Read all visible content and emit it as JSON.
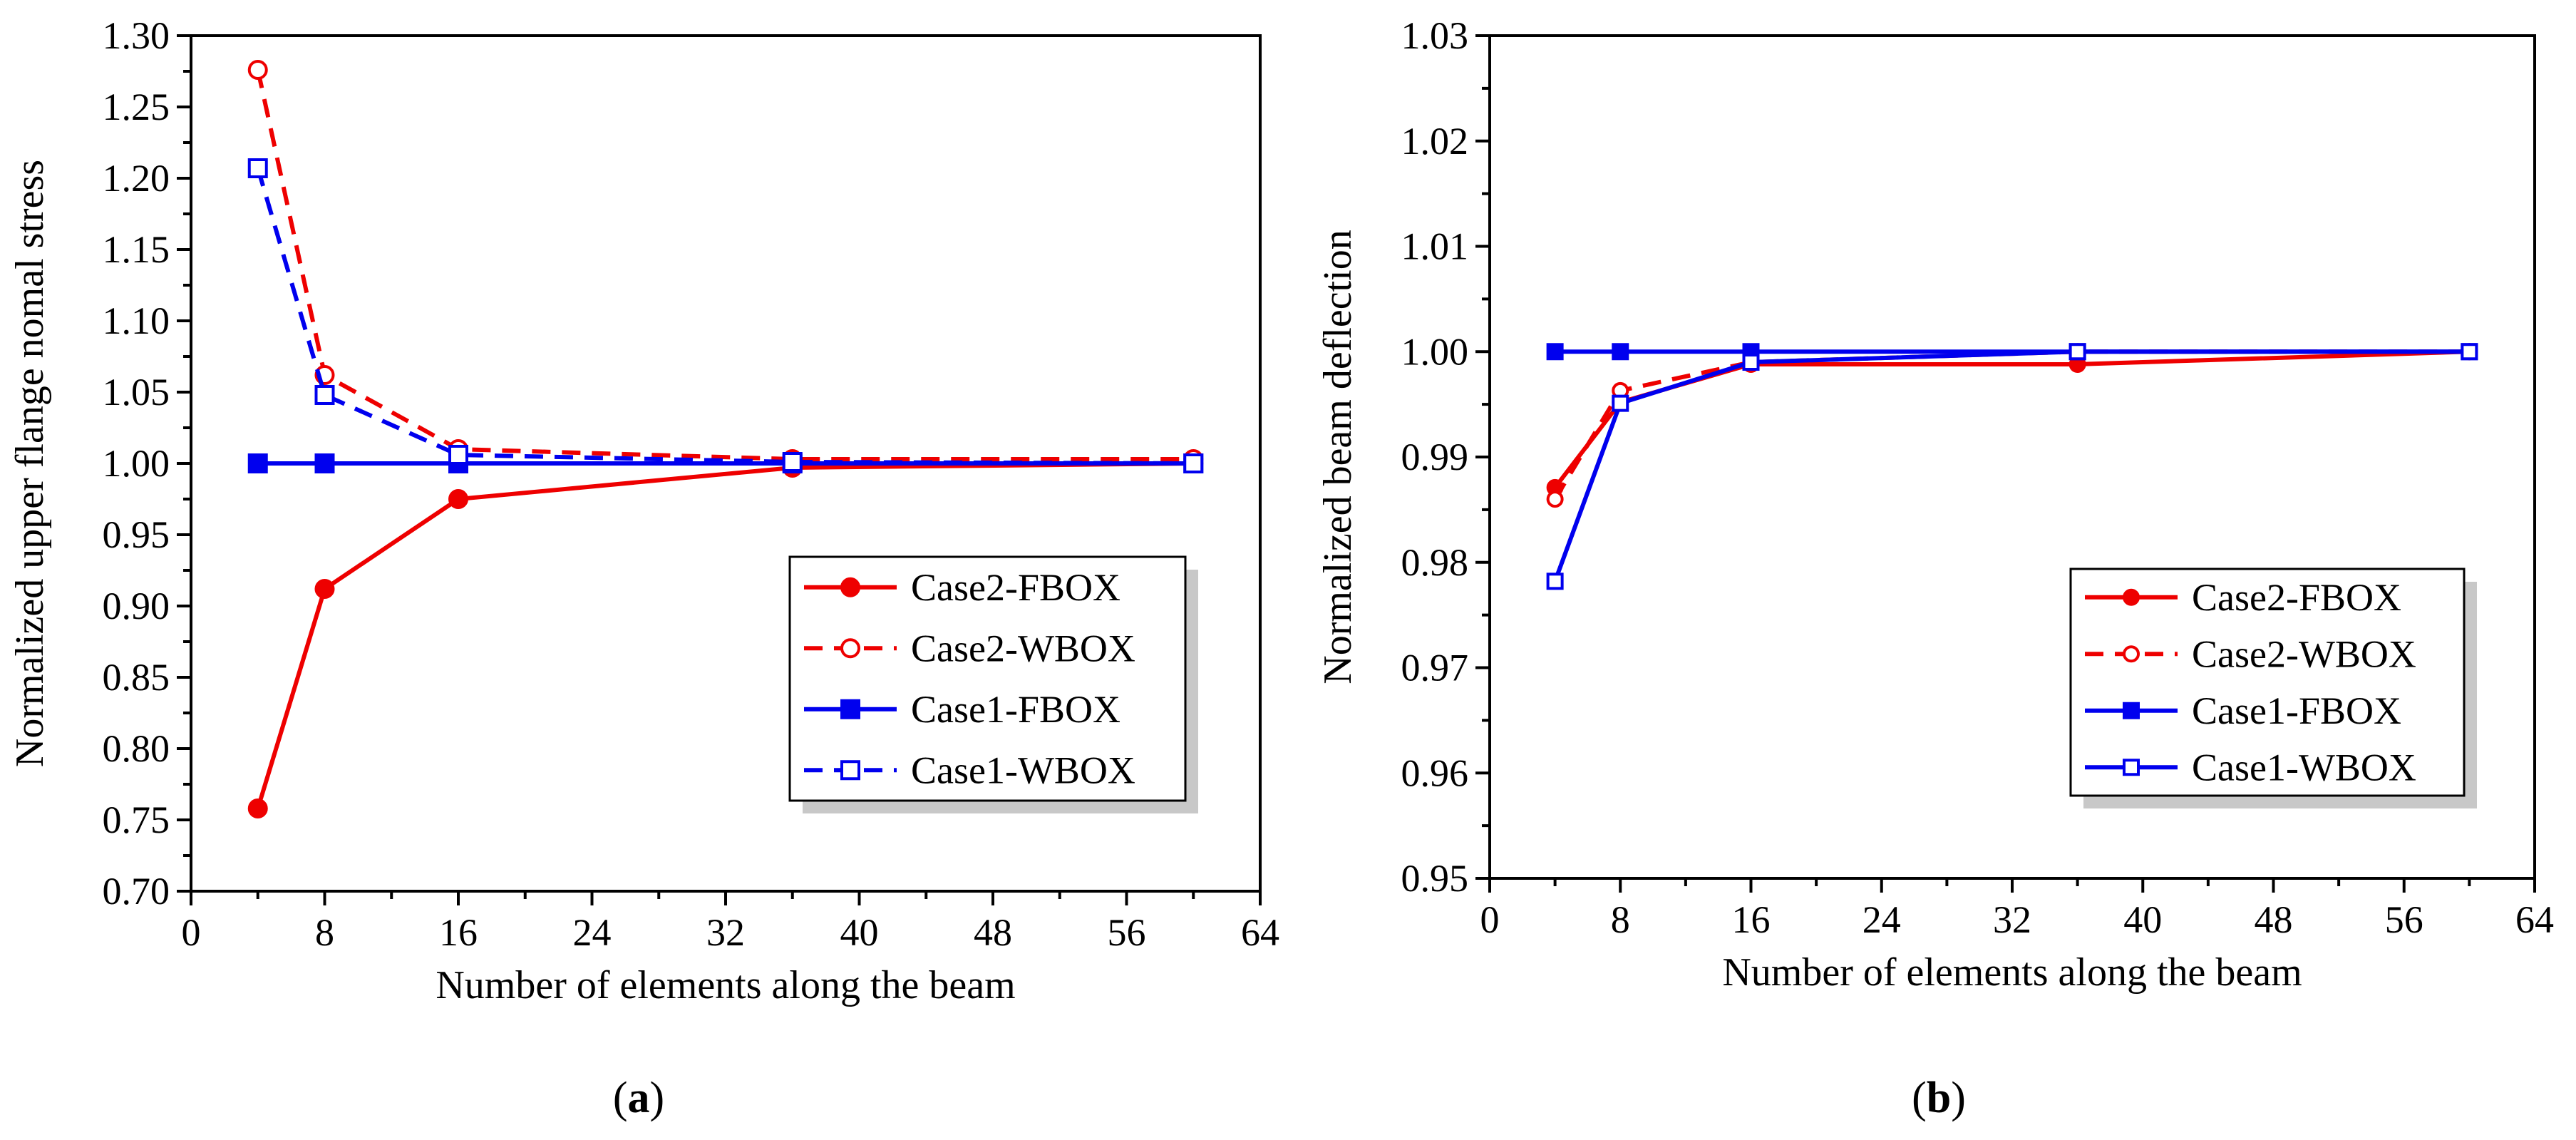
{
  "chart_data": [
    {
      "type": "line",
      "panel": "a",
      "xlabel": "Number of  elements along the beam",
      "ylabel": "Normalized upper flange nomal stress",
      "xlim": [
        0,
        64
      ],
      "ylim": [
        0.7,
        1.3
      ],
      "xticks": [
        "0",
        "8",
        "16",
        "24",
        "32",
        "40",
        "48",
        "56",
        "64"
      ],
      "yticks": [
        "0.70",
        "0.75",
        "0.80",
        "0.85",
        "0.90",
        "0.95",
        "1.00",
        "1.05",
        "1.10",
        "1.15",
        "1.20",
        "1.25",
        "1.30"
      ],
      "legend_position": "lower-right",
      "x": [
        4,
        8,
        16,
        36,
        60
      ],
      "series": [
        {
          "name": "Case2-FBOX",
          "color": "#ee0000",
          "dash": "solid",
          "marker": "circle-filled",
          "values": [
            0.758,
            0.912,
            0.975,
            0.997,
            1.0
          ]
        },
        {
          "name": "Case2-WBOX",
          "color": "#ee0000",
          "dash": "dashed",
          "marker": "circle-open",
          "values": [
            1.276,
            1.062,
            1.01,
            1.003,
            1.003
          ]
        },
        {
          "name": "Case1-FBOX",
          "color": "#0000ee",
          "dash": "solid",
          "marker": "square-filled",
          "values": [
            1.0,
            1.0,
            1.0,
            1.0,
            1.0
          ]
        },
        {
          "name": "Case1-WBOX",
          "color": "#0000ee",
          "dash": "dashed",
          "marker": "square-open",
          "values": [
            1.207,
            1.048,
            1.006,
            1.001,
            1.0
          ]
        }
      ]
    },
    {
      "type": "line",
      "panel": "b",
      "xlabel": "Number of  elements along the beam",
      "ylabel": "Normalized beam deflection",
      "xlim": [
        0,
        64
      ],
      "ylim": [
        0.95,
        1.03
      ],
      "xticks": [
        "0",
        "8",
        "16",
        "24",
        "32",
        "40",
        "48",
        "56",
        "64"
      ],
      "yticks": [
        "0.95",
        "0.96",
        "0.97",
        "0.98",
        "0.99",
        "1.00",
        "1.01",
        "1.02",
        "1.03"
      ],
      "legend_position": "lower-right",
      "x": [
        4,
        8,
        16,
        36,
        60
      ],
      "series": [
        {
          "name": "Case2-FBOX",
          "color": "#ee0000",
          "dash": "solid",
          "marker": "circle-filled",
          "values": [
            0.9871,
            0.9952,
            0.9988,
            0.9988,
            1.0
          ]
        },
        {
          "name": "Case2-WBOX",
          "color": "#ee0000",
          "dash": "dashed",
          "marker": "circle-open",
          "values": [
            0.986,
            0.9963,
            0.999,
            1.0,
            1.0
          ]
        },
        {
          "name": "Case1-FBOX",
          "color": "#0000ee",
          "dash": "solid",
          "marker": "square-filled",
          "values": [
            1.0,
            1.0,
            1.0,
            1.0,
            1.0
          ]
        },
        {
          "name": "Case1-WBOX",
          "color": "#0000ee",
          "dash": "solid",
          "marker": "square-open",
          "values": [
            0.9782,
            0.9951,
            0.999,
            1.0,
            1.0
          ]
        }
      ]
    }
  ],
  "panel_labels": [
    {
      "open": "(",
      "letter": "a",
      "close": ")"
    },
    {
      "open": "(",
      "letter": "b",
      "close": ")"
    }
  ]
}
